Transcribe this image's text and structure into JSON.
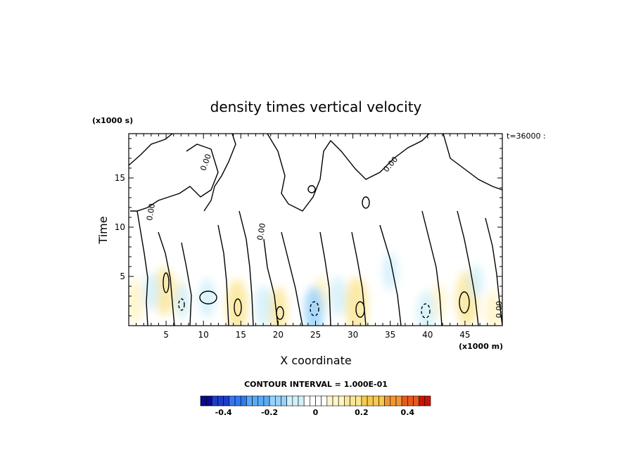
{
  "chart_data": {
    "type": "heatmap",
    "title": "density times vertical velocity",
    "xlabel": "X coordinate",
    "ylabel": "Time",
    "x_unit": "(x1000 m)",
    "y_unit": "(x1000 s)",
    "time_note": "t=36000 :",
    "xlim": [
      0,
      50
    ],
    "ylim": [
      0,
      19.5
    ],
    "x_ticks": [
      5,
      10,
      15,
      20,
      25,
      30,
      35,
      40,
      45
    ],
    "y_ticks": [
      5,
      10,
      15
    ],
    "contour_interval_text": "CONTOUR INTERVAL = 1.000E-01",
    "contour_label": "0.00",
    "colorbar": {
      "min": -0.5,
      "max": 0.5,
      "ticks": [
        -0.4,
        -0.2,
        0,
        0.2,
        0.4
      ],
      "tick_labels": [
        "-0.4",
        "-0.2",
        "0",
        "0.2",
        "0.4"
      ],
      "colors": [
        "#0a0a8c",
        "#1e3cc8",
        "#3278f0",
        "#5aaaf5",
        "#96d2fa",
        "#d2f0fa",
        "#ffffff",
        "#fff5c8",
        "#fae696",
        "#f5c850",
        "#f09632",
        "#e65a1e",
        "#c8140a"
      ]
    },
    "positive_cells": [
      {
        "x": 0.8,
        "t": 2.5,
        "value": 0.12
      },
      {
        "x": 4.8,
        "t": 3.5,
        "value": 0.15
      },
      {
        "x": 6.8,
        "t": 2.8,
        "value": 0.08
      },
      {
        "x": 14.5,
        "t": 2.0,
        "value": 0.18
      },
      {
        "x": 20.0,
        "t": 1.6,
        "value": 0.13
      },
      {
        "x": 25.8,
        "t": 3.2,
        "value": 0.08
      },
      {
        "x": 30.5,
        "t": 2.1,
        "value": 0.2
      },
      {
        "x": 41.5,
        "t": 2.5,
        "value": 0.07
      },
      {
        "x": 45.3,
        "t": 2.7,
        "value": 0.2
      },
      {
        "x": 48.8,
        "t": 1.5,
        "value": 0.1
      }
    ],
    "negative_cells": [
      {
        "x": 3.0,
        "t": 3.5,
        "value": -0.08
      },
      {
        "x": 7.2,
        "t": 2.5,
        "value": -0.06
      },
      {
        "x": 10.5,
        "t": 2.8,
        "value": -0.09
      },
      {
        "x": 18.0,
        "t": 2.0,
        "value": -0.1
      },
      {
        "x": 24.8,
        "t": 1.6,
        "value": -0.14
      },
      {
        "x": 28.0,
        "t": 3.0,
        "value": -0.09
      },
      {
        "x": 35.0,
        "t": 5.5,
        "value": -0.08
      },
      {
        "x": 39.8,
        "t": 1.3,
        "value": -0.12
      },
      {
        "x": 46.5,
        "t": 4.5,
        "value": -0.05
      }
    ]
  }
}
